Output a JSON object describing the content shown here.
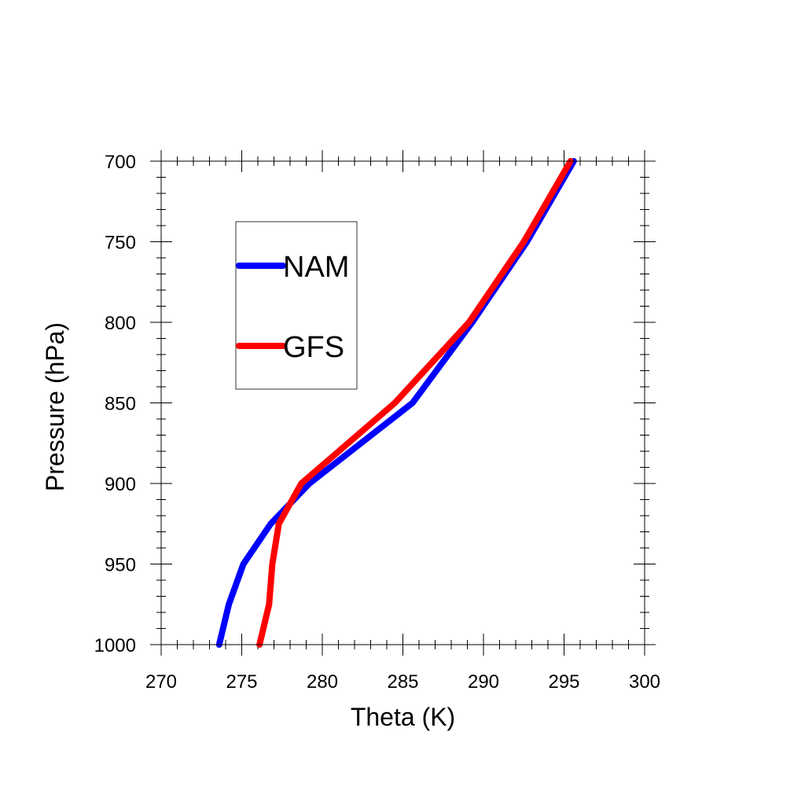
{
  "chart_data": {
    "type": "line",
    "title": "",
    "xlabel": "Theta (K)",
    "ylabel": "Pressure (hPa)",
    "xlim": [
      270,
      300
    ],
    "ylim": [
      1000,
      700
    ],
    "y_inverted": true,
    "xticks": [
      270,
      275,
      280,
      285,
      290,
      295,
      300
    ],
    "yticks": [
      700,
      750,
      800,
      850,
      900,
      950,
      1000
    ],
    "legend": {
      "placement": "upper-left",
      "entries": [
        "NAM",
        "GFS"
      ]
    },
    "grid": false,
    "series": [
      {
        "name": "NAM",
        "color": "#0000ff",
        "points": [
          {
            "x": 273.6,
            "y": 1000
          },
          {
            "x": 274.2,
            "y": 975
          },
          {
            "x": 275.1,
            "y": 950
          },
          {
            "x": 276.8,
            "y": 925
          },
          {
            "x": 279.2,
            "y": 900
          },
          {
            "x": 285.6,
            "y": 850
          },
          {
            "x": 289.3,
            "y": 800
          },
          {
            "x": 292.7,
            "y": 750
          },
          {
            "x": 295.6,
            "y": 700
          }
        ]
      },
      {
        "name": "GFS",
        "color": "#ff0000",
        "points": [
          {
            "x": 276.1,
            "y": 1000
          },
          {
            "x": 276.7,
            "y": 975
          },
          {
            "x": 276.9,
            "y": 950
          },
          {
            "x": 277.3,
            "y": 925
          },
          {
            "x": 278.7,
            "y": 900
          },
          {
            "x": 284.5,
            "y": 850
          },
          {
            "x": 289.1,
            "y": 800
          },
          {
            "x": 292.5,
            "y": 750
          },
          {
            "x": 295.4,
            "y": 700
          }
        ]
      }
    ]
  }
}
